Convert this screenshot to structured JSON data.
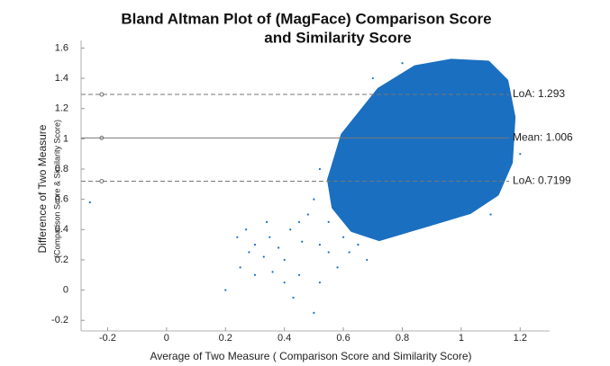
{
  "chart_data": {
    "type": "scatter",
    "title_lines": [
      "Bland Altman Plot of (MagFace) Comparison Score",
      "and Similarity Score"
    ],
    "x_label": "Average of Two Measure ( Comparison Score and Similarity Score)",
    "y_label": "Difference of Two Measure",
    "y_sublabel": "(Comparison Score & Similarity Score)",
    "xlim": [
      -0.29,
      1.3
    ],
    "ylim": [
      -0.27,
      1.65
    ],
    "xticks": [
      -0.2,
      0,
      0.2,
      0.4,
      0.6,
      0.8,
      1,
      1.2
    ],
    "yticks": [
      -0.2,
      0,
      0.2,
      0.4,
      0.6,
      0.8,
      1,
      1.2,
      1.4,
      1.6
    ],
    "color": "#1a6fc0",
    "ref_marker_x": -0.22,
    "reference_lines": [
      {
        "value": 1.293,
        "label": "LoA: 1.293",
        "style": "dashed"
      },
      {
        "value": 1.006,
        "label": "Mean: 1.006",
        "style": "solid"
      },
      {
        "value": 0.7199,
        "label": "LoA: 0.7199",
        "style": "dashed"
      }
    ],
    "dense_region": {
      "x": [
        0.554,
        0.6,
        0.722,
        0.845,
        0.967,
        1.09,
        1.151,
        1.175,
        1.166,
        1.12,
        1.028,
        0.875,
        0.722,
        0.631,
        0.569
      ],
      "y": [
        0.728,
        1.024,
        1.321,
        1.469,
        1.511,
        1.499,
        1.38,
        1.143,
        0.846,
        0.639,
        0.52,
        0.431,
        0.342,
        0.401,
        0.55
      ]
    },
    "x": [
      0.2,
      0.25,
      0.3,
      0.35,
      0.4,
      0.45,
      0.5,
      0.42,
      0.48,
      0.52,
      0.55,
      0.38,
      0.33,
      0.28,
      0.45,
      0.5,
      0.56,
      0.6,
      0.62,
      0.58,
      0.46,
      0.4,
      0.36,
      0.3,
      0.24,
      0.27,
      0.55,
      0.6,
      0.65,
      0.68,
      0.52,
      0.43,
      0.34,
      0.52,
      0.6,
      0.7,
      0.8,
      1.2,
      1.1,
      -0.26
    ],
    "y": [
      0.0,
      0.15,
      0.3,
      0.35,
      0.2,
      0.1,
      -0.15,
      0.4,
      0.5,
      0.3,
      0.25,
      0.28,
      0.22,
      0.25,
      0.45,
      0.6,
      0.7,
      0.5,
      0.25,
      0.15,
      0.32,
      0.05,
      0.12,
      0.1,
      0.35,
      0.4,
      0.45,
      0.35,
      0.3,
      0.2,
      0.05,
      -0.05,
      0.45,
      0.8,
      0.9,
      1.4,
      1.5,
      0.9,
      0.5,
      0.58
    ]
  }
}
